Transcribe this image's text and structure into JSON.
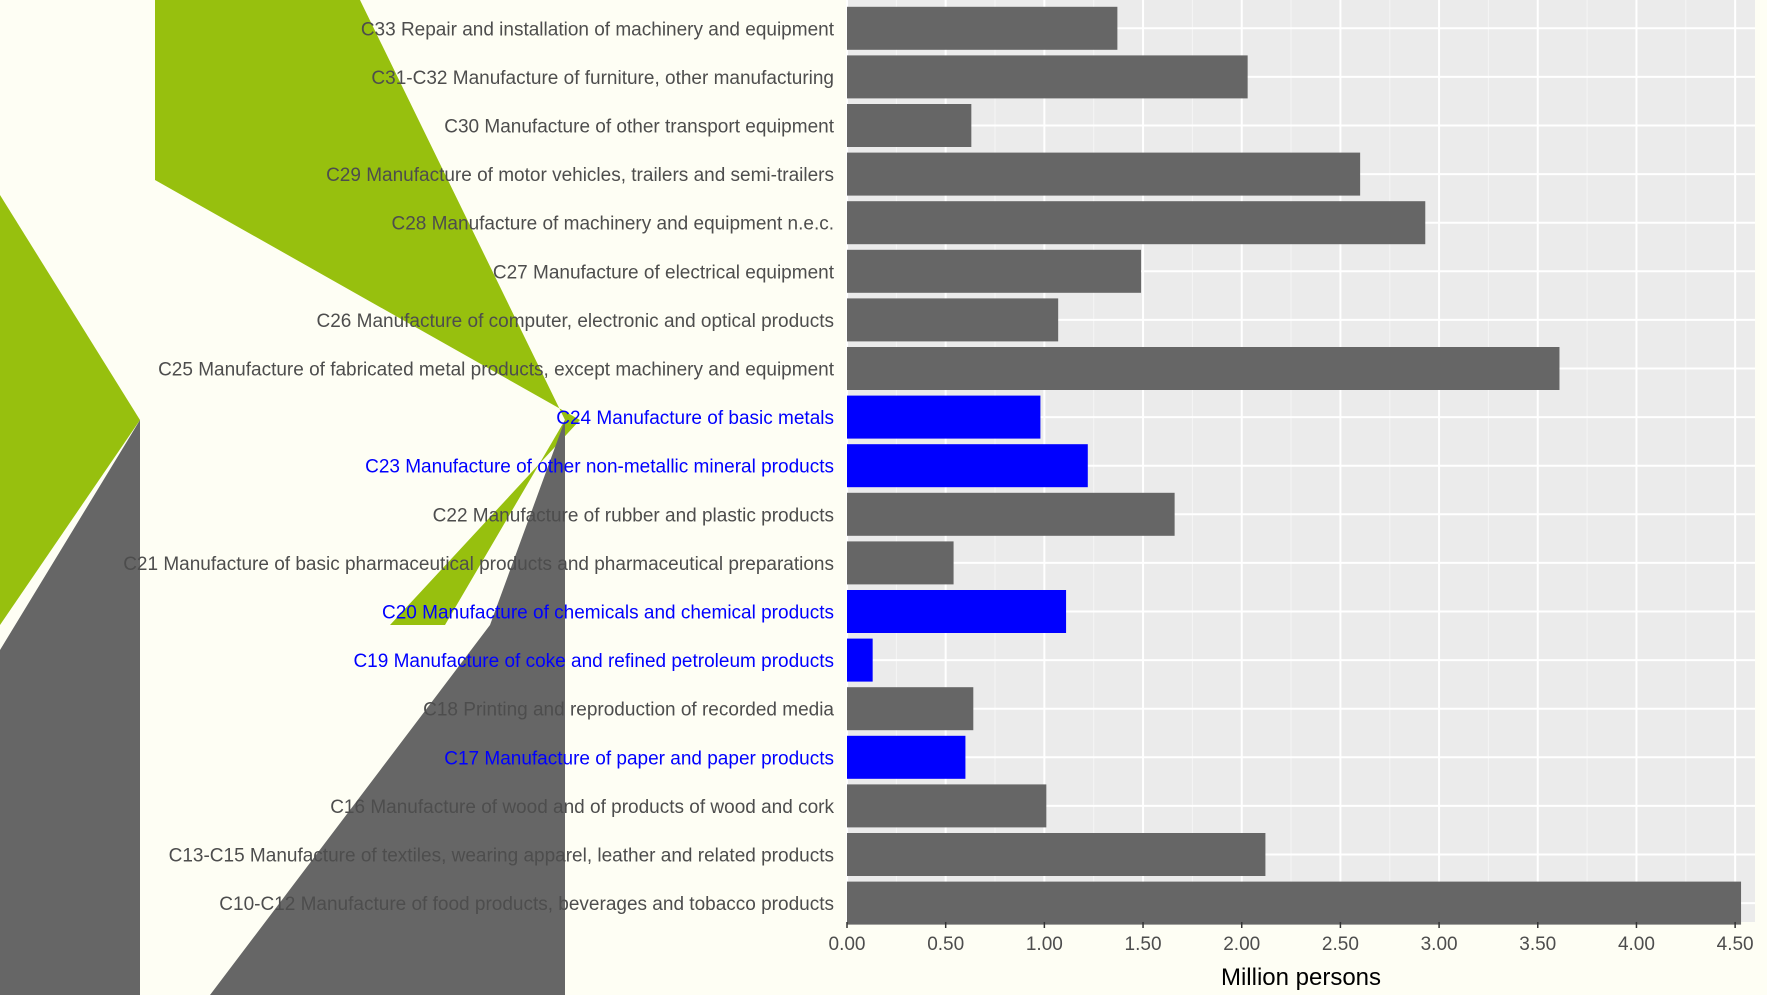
{
  "colors": {
    "default_bar": "#666666",
    "highlight_bar": "#0000ff",
    "default_label": "#4d4d4d",
    "highlight_label": "#0000ff",
    "panel_bg": "#ebebeb",
    "grid_major": "#ffffff",
    "grid_minor": "#f5f5f5",
    "deco_green": "#97c00e",
    "deco_gray": "#666666"
  },
  "chart_data": {
    "type": "bar",
    "orientation": "horizontal",
    "title": "",
    "xlabel": "Million persons",
    "ylabel": "",
    "xlim": [
      0,
      4.55
    ],
    "xticks": [
      "0.00",
      "0.50",
      "1.00",
      "1.50",
      "2.00",
      "2.50",
      "3.00",
      "3.50",
      "4.00",
      "4.50"
    ],
    "grid": true,
    "categories": [
      "C33 Repair and installation of machinery and equipment",
      "C31-C32 Manufacture of furniture, other manufacturing",
      "C30 Manufacture of other transport equipment",
      "C29 Manufacture of motor vehicles, trailers and semi-trailers",
      "C28 Manufacture of machinery and equipment n.e.c.",
      "C27 Manufacture of electrical equipment",
      "C26 Manufacture of computer, electronic and optical products",
      "C25 Manufacture of fabricated metal products, except machinery and equipment",
      "C24 Manufacture of basic metals",
      "C23 Manufacture of other non-metallic mineral products",
      "C22 Manufacture of rubber and plastic products",
      "C21 Manufacture of basic pharmaceutical products and pharmaceutical preparations",
      "C20 Manufacture of chemicals and chemical products",
      "C19 Manufacture of coke and refined petroleum products",
      "C18 Printing and reproduction of recorded media",
      "C17 Manufacture of paper and paper products",
      "C16 Manufacture of wood and of products of wood and cork",
      "C13-C15 Manufacture of textiles, wearing apparel, leather and related products",
      "C10-C12 Manufacture of food products, beverages and tobacco products"
    ],
    "values": [
      1.37,
      2.03,
      0.63,
      2.6,
      2.93,
      1.49,
      1.07,
      3.61,
      0.98,
      1.22,
      1.66,
      0.54,
      1.11,
      0.13,
      0.64,
      0.6,
      1.01,
      2.12,
      4.53
    ],
    "highlighted": [
      false,
      false,
      false,
      false,
      false,
      false,
      false,
      false,
      true,
      true,
      false,
      false,
      true,
      true,
      false,
      true,
      false,
      false,
      false
    ]
  }
}
